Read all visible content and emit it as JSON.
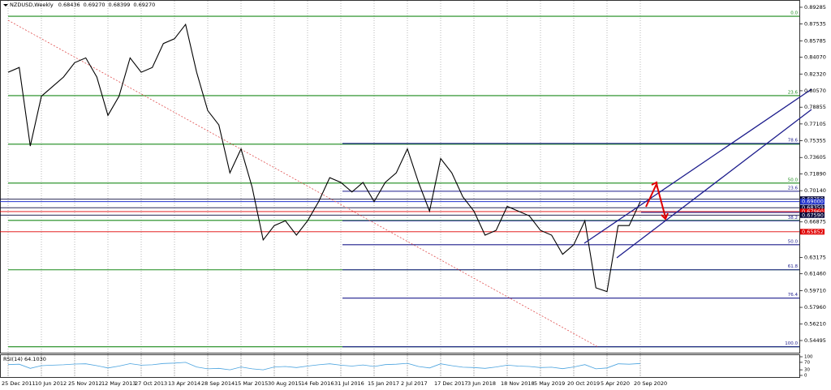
{
  "chart_data": [
    {
      "type": "line",
      "title": "NZDUSD,Weekly",
      "header_values": [
        "0.68436",
        "0.69270",
        "0.68399",
        "0.69270"
      ],
      "categories": [
        "25 Dec 2011",
        null,
        null,
        "10 Jun 2012",
        null,
        null,
        "25 Nov 2012",
        null,
        null,
        "12 May 2013",
        null,
        null,
        "27 Oct 2013",
        null,
        null,
        "13 Apr 2014",
        null,
        null,
        "28 Sep 2014",
        null,
        null,
        "15 Mar 2015",
        null,
        null,
        "30 Aug 2015",
        null,
        null,
        "14 Feb 2016",
        null,
        null,
        "31 Jul 2016",
        null,
        null,
        "15 Jan 2017",
        null,
        null,
        "2 Jul 2017",
        null,
        null,
        "17 Dec 2017",
        null,
        null,
        "3 Jun 2018",
        null,
        null,
        "18 Nov 2018",
        null,
        null,
        "5 May 2019",
        null,
        null,
        "20 Oct 2019",
        null,
        null,
        "5 Apr 2020",
        null,
        null,
        "20 Sep 2020"
      ],
      "values": [
        0.825,
        0.83,
        0.748,
        0.8,
        0.81,
        0.82,
        0.835,
        0.84,
        0.82,
        0.78,
        0.8,
        0.84,
        0.825,
        0.83,
        0.855,
        0.86,
        0.875,
        0.825,
        0.785,
        0.77,
        0.72,
        0.745,
        0.705,
        0.65,
        0.665,
        0.67,
        0.655,
        0.67,
        0.69,
        0.715,
        0.71,
        0.7,
        0.71,
        0.69,
        0.71,
        0.72,
        0.745,
        0.71,
        0.68,
        0.735,
        0.72,
        0.695,
        0.68,
        0.655,
        0.66,
        0.685,
        0.68,
        0.675,
        0.66,
        0.655,
        0.635,
        0.645,
        0.67,
        0.6,
        0.596,
        0.665,
        0.665,
        0.69
      ],
      "color": "#000000",
      "ylim": [
        0.5314,
        0.8979
      ],
      "yticks": [
        0.89285,
        0.87535,
        0.85785,
        {
          "value": 0.8407,
          "label": "0.84070"
        },
        {
          "value": 0.8232,
          "label": "0.82320"
        },
        {
          "value": 0.8057,
          "label": "0.80570"
        },
        0.78855,
        0.77105,
        0.75355,
        0.73605,
        {
          "value": 0.7189,
          "label": "0.71890"
        },
        {
          "value": 0.7014,
          "label": "0.70140"
        },
        0.66875,
        0.63175,
        {
          "value": 0.6146,
          "label": "0.61460"
        },
        {
          "value": 0.5971,
          "label": "0.59710"
        },
        {
          "value": 0.5796,
          "label": "0.57960"
        },
        {
          "value": 0.5621,
          "label": "0.56210"
        },
        0.54495
      ],
      "levels": [
        {
          "value": 0.8835,
          "color": "#1a8a1a",
          "label": "0.0"
        },
        {
          "value": 0.8006,
          "color": "#1a8a1a",
          "label": "23.6"
        },
        {
          "value": 0.7499,
          "color": "#1a8a1a"
        },
        {
          "value": 0.7093,
          "color": "#1a8a1a",
          "label": "50.0"
        },
        {
          "value": 0.6704,
          "color": "#1a8a1a"
        },
        {
          "value": 0.6188,
          "color": "#1a8a1a"
        },
        {
          "value": 0.5384,
          "color": "#1a8a1a"
        },
        {
          "value": 0.7507,
          "color": "#1c1c8c",
          "label": "78.6"
        },
        {
          "value": 0.7008,
          "color": "#1c1c8c",
          "label": "23.6"
        },
        {
          "value": 0.67,
          "color": "#1c1c8c",
          "label": "38.2"
        },
        {
          "value": 0.645,
          "color": "#1c1c8c",
          "label": "50.0"
        },
        {
          "value": 0.6188,
          "color": "#1c1c8c",
          "label": "61.8"
        },
        {
          "value": 0.5892,
          "color": "#1c1c8c",
          "label": "76.4"
        },
        {
          "value": 0.5384,
          "color": "#1c1c8c",
          "label": "100.0"
        }
      ],
      "price_markers": [
        {
          "value": 0.6925,
          "label": "0.69250",
          "color": "#0a0a3c"
        },
        {
          "value": 0.69,
          "label": "0.69000",
          "color": "#2233cc"
        },
        {
          "value": 0.68359,
          "label": "0.68359",
          "color": "#0a0a3c"
        },
        {
          "value": 0.6796,
          "label": "0.67960",
          "color": "#e00000"
        },
        {
          "value": 0.6759,
          "label": "0.67590",
          "color": "#0a0a3c"
        },
        {
          "value": 0.65852,
          "label": "0.65852",
          "color": "#e00000"
        }
      ]
    },
    {
      "type": "line",
      "title": "RSI(14) 64.1030",
      "values": [
        58,
        60,
        38,
        52,
        55,
        57,
        61,
        62,
        52,
        40,
        50,
        63,
        55,
        57,
        64,
        66,
        70,
        45,
        35,
        38,
        30,
        45,
        35,
        30,
        45,
        48,
        42,
        50,
        57,
        62,
        55,
        50,
        56,
        48,
        58,
        60,
        65,
        48,
        40,
        62,
        52,
        44,
        42,
        38,
        45,
        55,
        50,
        48,
        42,
        44,
        36,
        45,
        58,
        35,
        40,
        62,
        60,
        64
      ],
      "color": "#4aa3df",
      "ylim": [
        0,
        100
      ],
      "yticks": [
        100,
        70,
        30,
        0
      ]
    }
  ]
}
